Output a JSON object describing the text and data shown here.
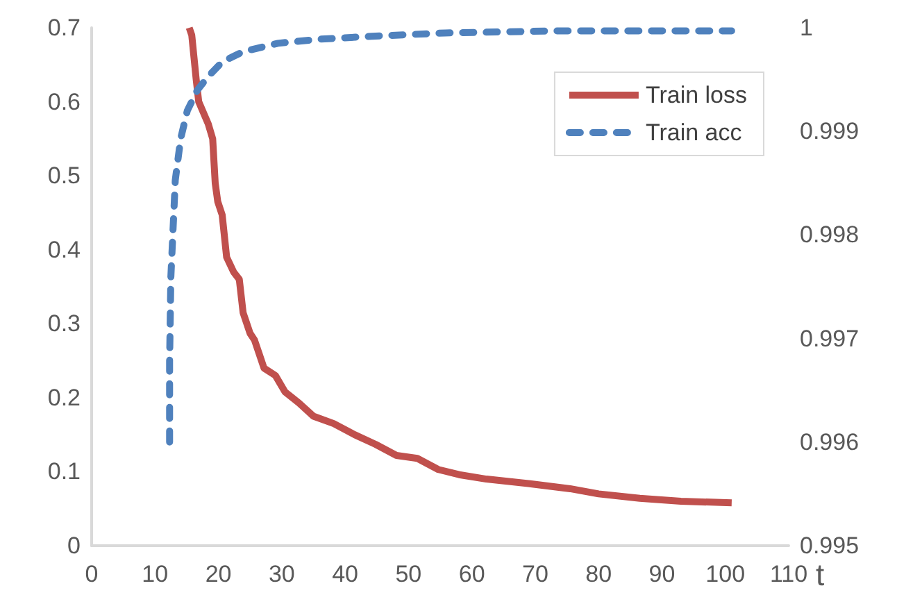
{
  "chart_data": {
    "type": "line",
    "xlabel": "t",
    "xlim": [
      0,
      110
    ],
    "xticks": [
      0,
      10,
      20,
      30,
      40,
      50,
      60,
      70,
      80,
      90,
      100,
      110
    ],
    "ylim": [
      0,
      0.7
    ],
    "yticks": [
      0,
      0.1,
      0.2,
      0.3,
      0.4,
      0.5,
      0.6,
      0.7
    ],
    "y2lim": [
      0.995,
      1
    ],
    "y2ticks": [
      0.995,
      0.996,
      0.997,
      0.998,
      0.999,
      1
    ],
    "grid": false,
    "legend": "top right",
    "marker": "none",
    "series": [
      {
        "name": "Train loss",
        "color": "#c0504d",
        "line_style": "solid",
        "x": [
          15.4,
          15.8,
          16.5,
          16.9,
          18.4,
          19.1,
          19.5,
          19.9,
          20.6,
          21.3,
          22.4,
          23.3,
          23.9,
          25,
          25.7,
          27.2,
          29,
          30.5,
          32.7,
          35,
          38.2,
          41.5,
          44.8,
          48.1,
          51.4,
          54.7,
          58,
          62.3,
          68.9,
          75.5,
          80,
          86.5,
          93,
          101
        ],
        "values": [
          0.7,
          0.69,
          0.63,
          0.6,
          0.57,
          0.55,
          0.49,
          0.465,
          0.447,
          0.39,
          0.37,
          0.36,
          0.315,
          0.287,
          0.278,
          0.24,
          0.23,
          0.208,
          0.193,
          0.175,
          0.165,
          0.15,
          0.137,
          0.122,
          0.118,
          0.103,
          0.096,
          0.09,
          0.084,
          0.077,
          0.07,
          0.064,
          0.06,
          0.058
        ]
      },
      {
        "name": "Train acc",
        "color": "#4f81bd",
        "line_style": "dashed",
        "axis": "y2",
        "x": [
          12.3,
          12.3,
          12.5,
          13.2,
          14.05,
          15.1,
          16.7,
          18.4,
          20.6,
          23.9,
          29.4,
          36,
          44.8,
          55.8,
          73.3,
          101
        ],
        "values": [
          0.996,
          0.99678,
          0.99759,
          0.99853,
          0.99893,
          0.9992,
          0.9994,
          0.99953,
          0.99967,
          0.99977,
          0.99985,
          0.99989,
          0.99992,
          0.99995,
          0.99997,
          0.99997
        ]
      }
    ]
  }
}
